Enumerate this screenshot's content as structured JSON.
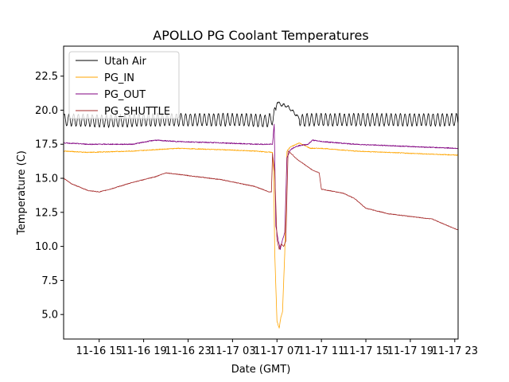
{
  "chart_data": {
    "type": "line",
    "title": "APOLLO PG Coolant Temperatures",
    "xlabel": "Date (GMT)",
    "ylabel": "Temperature (C)",
    "x_unit": "hours since 2011-11-16 00:00 GMT",
    "xlim": [
      11.8,
      47.3
    ],
    "ylim": [
      3.2,
      24.7
    ],
    "yticks": [
      5.0,
      7.5,
      10.0,
      12.5,
      15.0,
      17.5,
      20.0,
      22.5
    ],
    "ytick_labels": [
      "5.0",
      "7.5",
      "10.0",
      "12.5",
      "15.0",
      "17.5",
      "20.0",
      "22.5"
    ],
    "xticks": [
      15,
      19,
      23,
      27,
      31,
      35,
      39,
      43,
      47
    ],
    "xtick_labels": [
      "11-16 15",
      "11-16 19",
      "11-16 23",
      "11-17 03",
      "11-17 07",
      "11-17 11",
      "11-17 15",
      "11-17 19",
      "11-17 23"
    ],
    "legend_position": "top-left",
    "series": [
      {
        "name": "Utah Air",
        "color": "#000000",
        "oscillation": 0.45,
        "x": [
          11.8,
          16,
          20,
          24,
          28,
          30,
          30.7,
          31.0,
          31.4,
          31.9,
          32.3,
          32.8,
          33.2,
          33.6,
          35,
          39,
          43,
          47.3
        ],
        "y": [
          19.3,
          19.2,
          19.3,
          19.3,
          19.3,
          19.2,
          19.4,
          20.6,
          20.4,
          20.3,
          20.0,
          19.6,
          19.2,
          19.3,
          19.3,
          19.3,
          19.3,
          19.3
        ]
      },
      {
        "name": "PG_IN",
        "color": "#ffa500",
        "x": [
          11.8,
          14,
          18,
          22,
          26,
          29,
          30.6,
          30.7,
          30.8,
          31.0,
          31.2,
          31.35,
          31.5,
          31.7,
          31.9,
          32.2,
          32.5,
          33.0,
          33.5,
          34.0,
          35,
          38,
          41,
          44,
          47.3
        ],
        "y": [
          17.0,
          16.9,
          17.0,
          17.2,
          17.1,
          17.0,
          16.9,
          15.5,
          9.5,
          4.5,
          4.0,
          4.8,
          5.2,
          9.5,
          17.0,
          17.3,
          17.4,
          17.6,
          17.4,
          17.2,
          17.2,
          17.0,
          16.9,
          16.8,
          16.7
        ],
        "noise": 0.06
      },
      {
        "name": "PG_OUT",
        "color": "#800080",
        "x": [
          11.8,
          14,
          18,
          20,
          22,
          26,
          29,
          30.6,
          30.75,
          30.9,
          31.1,
          31.3,
          31.5,
          31.7,
          31.9,
          32.2,
          32.6,
          33.0,
          33.8,
          34.2,
          35,
          38,
          41,
          44,
          47.3
        ],
        "y": [
          17.6,
          17.5,
          17.5,
          17.8,
          17.7,
          17.6,
          17.5,
          17.5,
          19.0,
          11.5,
          10.5,
          9.8,
          10.5,
          11.0,
          16.5,
          17.1,
          17.3,
          17.4,
          17.5,
          17.8,
          17.7,
          17.5,
          17.4,
          17.3,
          17.2
        ],
        "noise": 0.07
      },
      {
        "name": "PG_SHUTTLE",
        "color": "#a52a2a",
        "x": [
          11.8,
          12.5,
          14,
          15,
          16,
          18,
          20,
          21,
          23,
          26,
          29,
          30.3,
          30.5,
          30.6,
          30.8,
          31.0,
          31.2,
          31.4,
          31.6,
          31.8,
          32.0,
          32.3,
          32.8,
          33.5,
          34.2,
          34.5,
          34.8,
          35,
          37,
          38,
          39,
          41,
          43,
          45,
          47.3
        ],
        "y": [
          15.0,
          14.6,
          14.1,
          14.0,
          14.2,
          14.7,
          15.1,
          15.4,
          15.2,
          14.9,
          14.4,
          14.0,
          14.0,
          16.8,
          15.5,
          10.5,
          9.8,
          10.2,
          10.0,
          10.4,
          17.0,
          16.8,
          16.4,
          16.0,
          15.6,
          15.5,
          15.4,
          14.2,
          13.9,
          13.5,
          12.8,
          12.4,
          12.2,
          12.0,
          11.2
        ],
        "noise": 0.05
      }
    ]
  }
}
